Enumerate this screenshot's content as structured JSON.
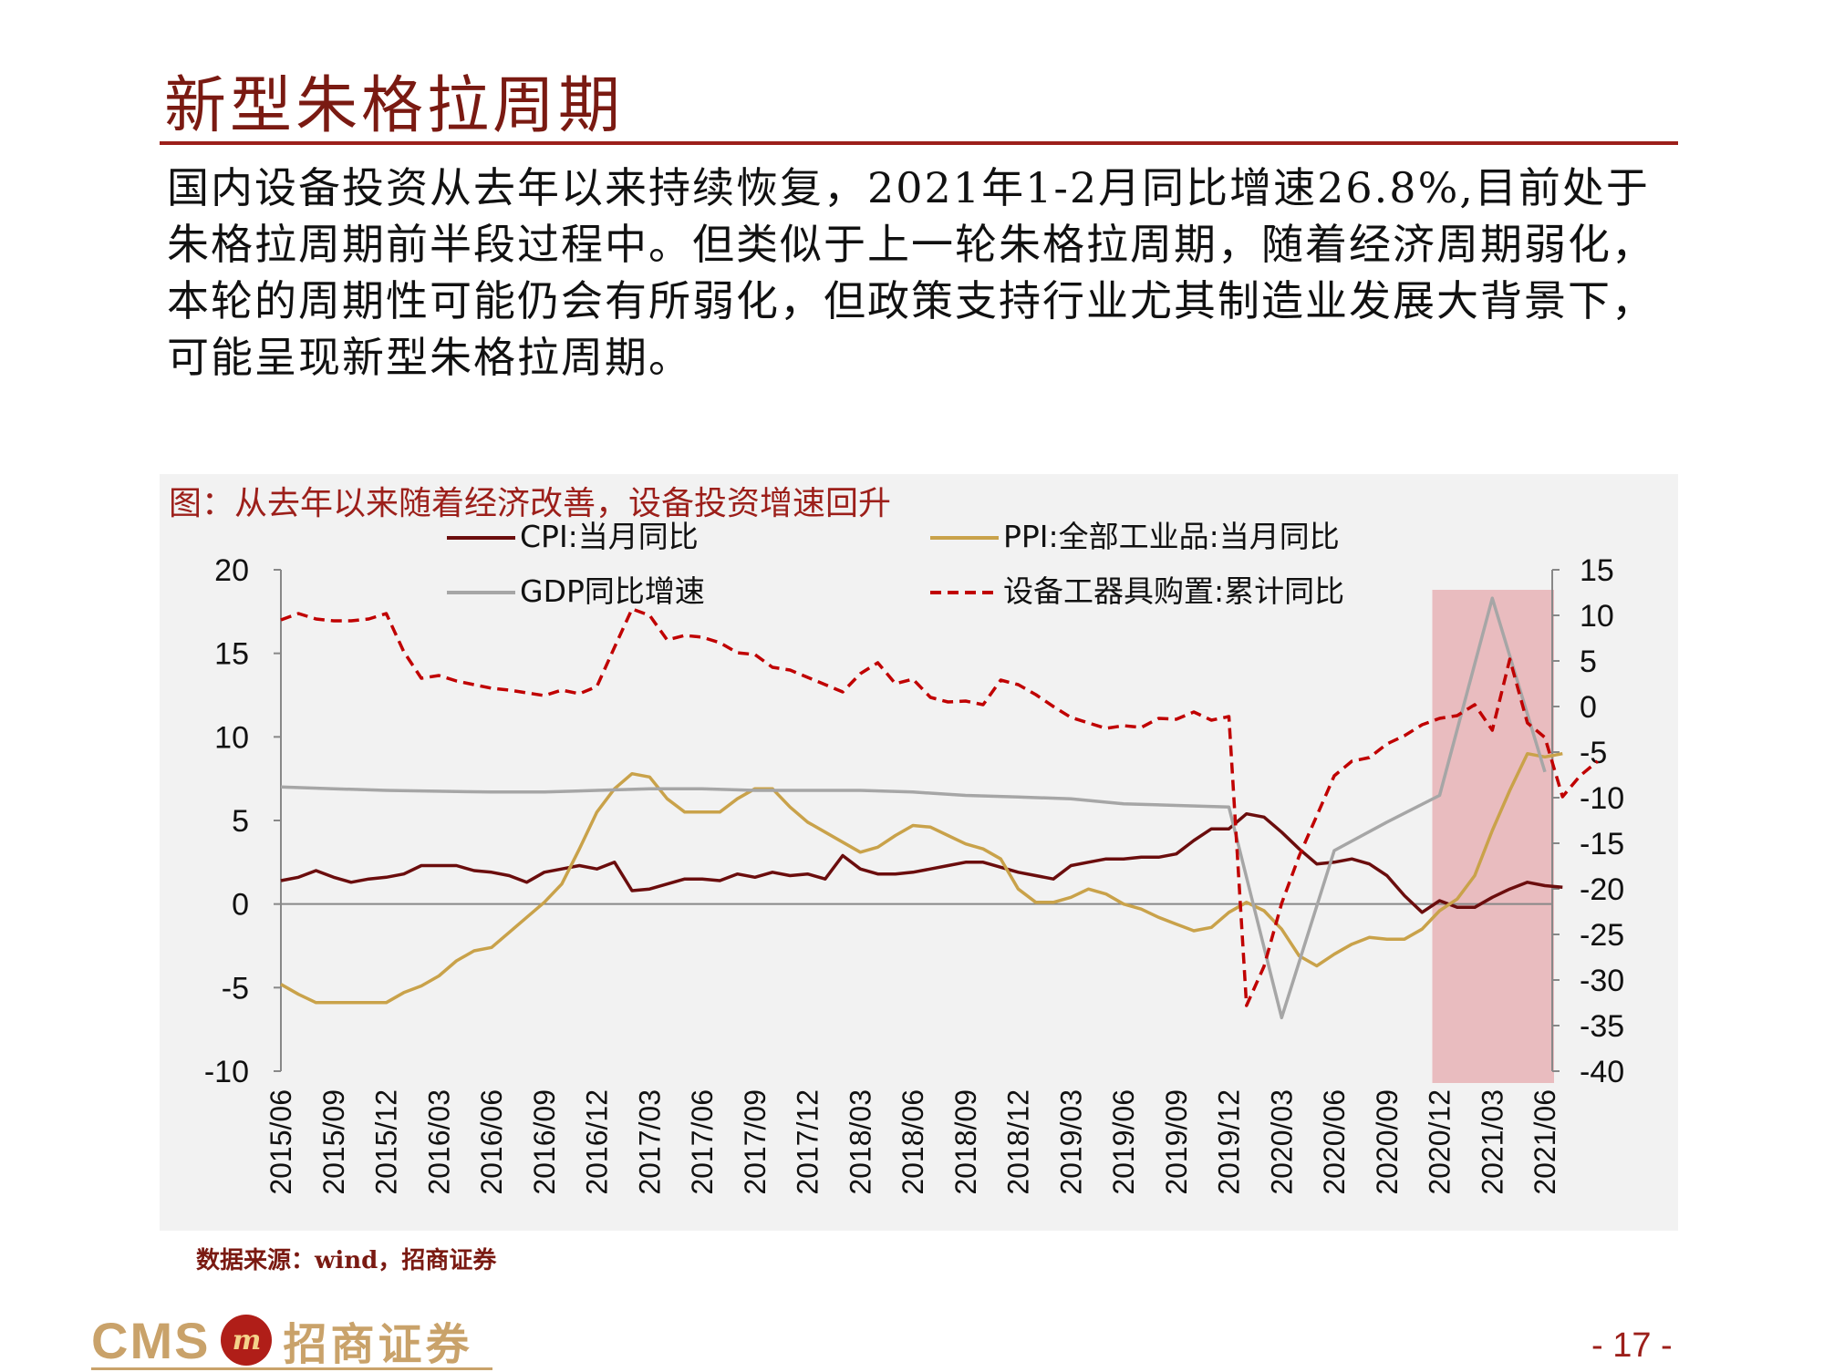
{
  "page": {
    "title": "新型朱格拉周期",
    "body": "国内设备投资从去年以来持续恢复，2021年1-2月同比增速26.8%,目前处于朱格拉周期前半段过程中。但类似于上一轮朱格拉周期，随着经济周期弱化，本轮的周期性可能仍会有所弱化，但政策支持行业尤其制造业发展大背景下，可能呈现新型朱格拉周期。",
    "chart_title": "图：从去年以来随着经济改善，设备投资增速回升",
    "source": "数据来源：wind，招商证券",
    "page_number": "- 17 -",
    "logo_en": "CMS",
    "logo_cn": "招商证券"
  },
  "colors": {
    "cpi": "#6b0d0d",
    "ppi": "#c9a24a",
    "gdp": "#a6a6a6",
    "equipment": "#c00000",
    "highlight": "#e8b8bc",
    "accent": "#9c1f1a"
  },
  "chart_data": {
    "type": "line",
    "x_ticks": [
      "2015/06",
      "2015/09",
      "2015/12",
      "2016/03",
      "2016/06",
      "2016/09",
      "2016/12",
      "2017/03",
      "2017/06",
      "2017/09",
      "2017/12",
      "2018/03",
      "2018/06",
      "2018/09",
      "2018/12",
      "2019/03",
      "2019/06",
      "2019/09",
      "2019/12",
      "2020/03",
      "2020/06",
      "2020/09",
      "2020/12",
      "2021/03",
      "2021/06"
    ],
    "y_left": {
      "min": -10,
      "max": 20,
      "ticks": [
        "20",
        "15",
        "10",
        "5",
        "0",
        "-5",
        "-10"
      ]
    },
    "y_right": {
      "min": -40,
      "max": 15,
      "ticks": [
        "15",
        "10",
        "5",
        "0",
        "-5",
        "-10",
        "-15",
        "-20",
        "-25",
        "-30",
        "-35",
        "-40"
      ]
    },
    "highlight_range": [
      "2020/12",
      "2021/06"
    ],
    "series": [
      {
        "name": "CPI:当月同比",
        "axis": "left",
        "style": "solid",
        "values": [
          1.4,
          1.6,
          2.0,
          1.6,
          1.3,
          1.5,
          1.6,
          1.8,
          2.3,
          2.3,
          2.3,
          2.0,
          1.9,
          1.7,
          1.3,
          1.9,
          2.1,
          2.3,
          2.1,
          2.5,
          0.8,
          0.9,
          1.2,
          1.5,
          1.5,
          1.4,
          1.8,
          1.6,
          1.9,
          1.7,
          1.8,
          1.5,
          2.9,
          2.1,
          1.8,
          1.8,
          1.9,
          2.1,
          2.3,
          2.5,
          2.5,
          2.2,
          1.9,
          1.7,
          1.5,
          2.3,
          2.5,
          2.7,
          2.7,
          2.8,
          2.8,
          3.0,
          3.8,
          4.5,
          4.5,
          5.4,
          5.2,
          4.3,
          3.3,
          2.4,
          2.5,
          2.7,
          2.4,
          1.7,
          0.5,
          -0.5,
          0.2,
          -0.2,
          -0.2,
          0.4,
          0.9,
          1.3,
          1.1,
          1.0
        ]
      },
      {
        "name": "PPI:全部工业品:当月同比",
        "axis": "left",
        "style": "solid",
        "values": [
          -4.8,
          -5.4,
          -5.9,
          -5.9,
          -5.9,
          -5.9,
          -5.9,
          -5.3,
          -4.9,
          -4.3,
          -3.4,
          -2.8,
          -2.6,
          -1.7,
          -0.8,
          0.1,
          1.2,
          3.3,
          5.5,
          6.9,
          7.8,
          7.6,
          6.3,
          5.5,
          5.5,
          5.5,
          6.3,
          6.9,
          6.9,
          5.8,
          4.9,
          4.3,
          3.7,
          3.1,
          3.4,
          4.1,
          4.7,
          4.6,
          4.1,
          3.6,
          3.3,
          2.7,
          0.9,
          0.1,
          0.1,
          0.4,
          0.9,
          0.6,
          -0.0,
          -0.3,
          -0.8,
          -1.2,
          -1.6,
          -1.4,
          -0.5,
          0.1,
          -0.4,
          -1.5,
          -3.1,
          -3.7,
          -3.0,
          -2.4,
          -2.0,
          -2.1,
          -2.1,
          -1.5,
          -0.4,
          0.3,
          1.7,
          4.4,
          6.8,
          9.0,
          8.8,
          9.0
        ]
      },
      {
        "name": "GDP同比增速",
        "axis": "left",
        "style": "solid",
        "points": [
          [
            "2015/06",
            7.0
          ],
          [
            "2015/09",
            6.9
          ],
          [
            "2015/12",
            6.8
          ],
          [
            "2016/06",
            6.7
          ],
          [
            "2016/09",
            6.7
          ],
          [
            "2016/12",
            6.8
          ],
          [
            "2017/03",
            6.9
          ],
          [
            "2017/06",
            6.9
          ],
          [
            "2017/09",
            6.8
          ],
          [
            "2017/12",
            6.8
          ],
          [
            "2018/03",
            6.8
          ],
          [
            "2018/06",
            6.7
          ],
          [
            "2018/09",
            6.5
          ],
          [
            "2018/12",
            6.4
          ],
          [
            "2019/03",
            6.3
          ],
          [
            "2019/06",
            6.0
          ],
          [
            "2019/09",
            5.9
          ],
          [
            "2019/12",
            5.8
          ],
          [
            "2020/03",
            -6.8
          ],
          [
            "2020/06",
            3.2
          ],
          [
            "2020/09",
            4.9
          ],
          [
            "2020/12",
            6.5
          ],
          [
            "2021/03",
            18.3
          ],
          [
            "2021/06",
            7.9
          ]
        ]
      },
      {
        "name": "设备工器具购置:累计同比",
        "axis": "right",
        "style": "dashed",
        "values": [
          9.5,
          10.2,
          9.6,
          9.4,
          9.4,
          9.6,
          10.2,
          6.0,
          3.1,
          3.4,
          2.8,
          2.4,
          2.0,
          1.8,
          1.5,
          1.2,
          1.8,
          1.4,
          2.2,
          6.5,
          10.7,
          10.0,
          7.3,
          7.8,
          7.6,
          7.0,
          5.9,
          5.7,
          4.3,
          4.0,
          3.2,
          2.4,
          1.6,
          3.6,
          4.8,
          2.5,
          3.0,
          1.0,
          0.5,
          0.6,
          0.2,
          2.9,
          2.4,
          1.3,
          0.0,
          -1.2,
          -1.8,
          -2.4,
          -2.1,
          -2.3,
          -1.3,
          -1.4,
          -0.6,
          -1.5,
          -1.1,
          -32.8,
          -28.5,
          -21.6,
          -16.4,
          -12.0,
          -7.6,
          -6.0,
          -5.6,
          -4.1,
          -3.2,
          -2.0,
          -1.3,
          -1.0,
          0.2,
          -2.6,
          5.2,
          -1.8,
          -3.4,
          -9.9,
          -7.6,
          -6.0
        ]
      }
    ]
  }
}
